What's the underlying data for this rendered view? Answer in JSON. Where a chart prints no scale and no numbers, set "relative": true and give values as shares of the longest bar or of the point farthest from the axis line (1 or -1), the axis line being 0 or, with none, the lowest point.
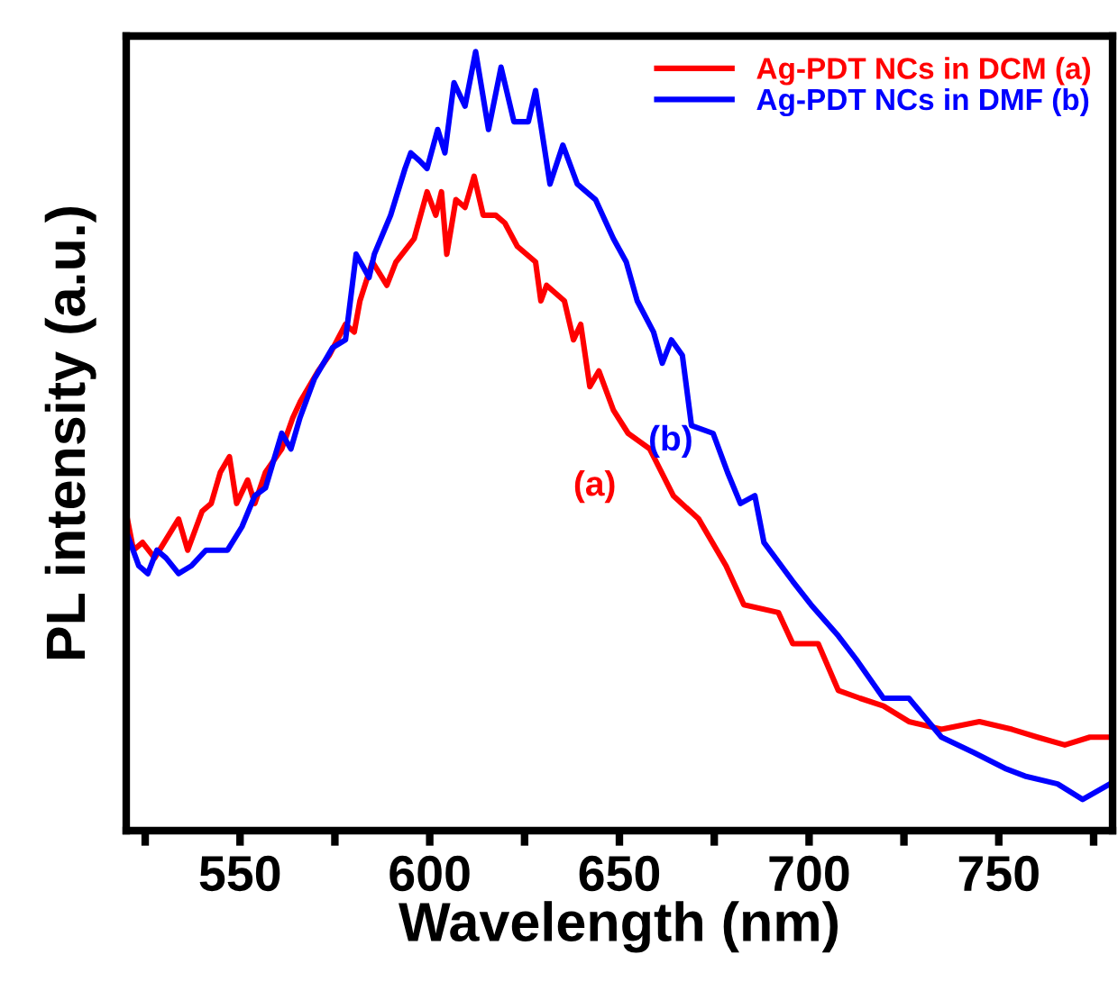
{
  "chart_data": {
    "type": "line",
    "xlabel": "Wavelength (nm)",
    "ylabel": "PL intensity (a.u.)",
    "relative": true,
    "xlim": [
      520,
      780
    ],
    "xticks": [
      {
        "value": 525,
        "label": null
      },
      550,
      {
        "value": 575,
        "label": null
      },
      600,
      {
        "value": 625,
        "label": null
      },
      650,
      {
        "value": 675,
        "label": null
      },
      700,
      {
        "value": 725,
        "label": null
      },
      750,
      {
        "value": 775,
        "label": null
      }
    ],
    "legend": "top right",
    "grid": false,
    "marker": "none",
    "line_style": "solid",
    "series": [
      {
        "name": "Ag-PDT NCs in DCM (a)",
        "color": "#ff0000",
        "x": [
          520.3,
          521.9,
          524.3,
          527.5,
          533.8,
          536.2,
          540.0,
          542.4,
          544.8,
          547.2,
          549.1,
          552.0,
          553.9,
          556.7,
          561.0,
          563.9,
          565.8,
          570.6,
          573.5,
          577.8,
          580.1,
          581.6,
          584.9,
          588.7,
          591.1,
          595.9,
          599.3,
          601.6,
          603.1,
          604.5,
          606.9,
          609.3,
          611.7,
          614.1,
          617.4,
          619.8,
          623.1,
          627.9,
          629.3,
          630.8,
          635.5,
          637.9,
          639.8,
          642.2,
          644.6,
          648.4,
          652.3,
          658.0,
          664.2,
          670.9,
          678.1,
          682.8,
          691.9,
          695.7,
          702.4,
          707.7,
          713.4,
          719.6,
          726.3,
          734.9,
          744.9,
          753.5,
          760.2,
          767.4,
          774.0,
          780.0
        ],
        "values": [
          0.4,
          0.36,
          0.37,
          0.35,
          0.4,
          0.36,
          0.41,
          0.42,
          0.46,
          0.48,
          0.42,
          0.45,
          0.42,
          0.46,
          0.49,
          0.53,
          0.55,
          0.59,
          0.61,
          0.65,
          0.64,
          0.68,
          0.73,
          0.7,
          0.73,
          0.76,
          0.82,
          0.79,
          0.82,
          0.74,
          0.81,
          0.8,
          0.84,
          0.79,
          0.79,
          0.78,
          0.75,
          0.73,
          0.68,
          0.7,
          0.68,
          0.63,
          0.65,
          0.57,
          0.59,
          0.54,
          0.51,
          0.49,
          0.43,
          0.4,
          0.34,
          0.29,
          0.28,
          0.24,
          0.24,
          0.18,
          0.17,
          0.16,
          0.14,
          0.13,
          0.14,
          0.13,
          0.12,
          0.11,
          0.12,
          0.12
        ]
      },
      {
        "name": "Ag-PDT NCs in DMF (b)",
        "color": "#0000ff",
        "x": [
          520.3,
          523.3,
          525.7,
          528.1,
          530.5,
          533.8,
          537.2,
          541.0,
          546.7,
          550.5,
          553.9,
          556.7,
          561.0,
          563.4,
          565.8,
          569.6,
          574.4,
          577.8,
          580.6,
          584.0,
          585.4,
          589.7,
          593.5,
          595.0,
          597.3,
          599.3,
          602.1,
          604.0,
          606.4,
          609.3,
          612.1,
          615.5,
          618.8,
          622.2,
          626.0,
          627.9,
          631.7,
          635.1,
          638.9,
          643.7,
          648.4,
          651.8,
          654.7,
          659.0,
          661.3,
          663.7,
          666.6,
          669.0,
          674.7,
          678.5,
          681.9,
          685.7,
          688.1,
          695.7,
          700.5,
          707.7,
          712.4,
          719.6,
          726.3,
          734.9,
          743.5,
          751.6,
          756.9,
          765.5,
          772.1,
          779.3
        ],
        "values": [
          0.38,
          0.34,
          0.33,
          0.36,
          0.35,
          0.33,
          0.34,
          0.36,
          0.36,
          0.39,
          0.43,
          0.44,
          0.51,
          0.49,
          0.53,
          0.58,
          0.62,
          0.63,
          0.74,
          0.71,
          0.74,
          0.79,
          0.85,
          0.87,
          0.86,
          0.85,
          0.9,
          0.87,
          0.96,
          0.93,
          1.0,
          0.9,
          0.98,
          0.91,
          0.91,
          0.95,
          0.83,
          0.88,
          0.83,
          0.81,
          0.76,
          0.73,
          0.68,
          0.64,
          0.6,
          0.63,
          0.61,
          0.52,
          0.51,
          0.46,
          0.42,
          0.43,
          0.37,
          0.32,
          0.29,
          0.25,
          0.22,
          0.17,
          0.17,
          0.12,
          0.1,
          0.08,
          0.07,
          0.06,
          0.04,
          0.06
        ]
      }
    ],
    "annotations": [
      "(a)",
      "(b)"
    ]
  }
}
